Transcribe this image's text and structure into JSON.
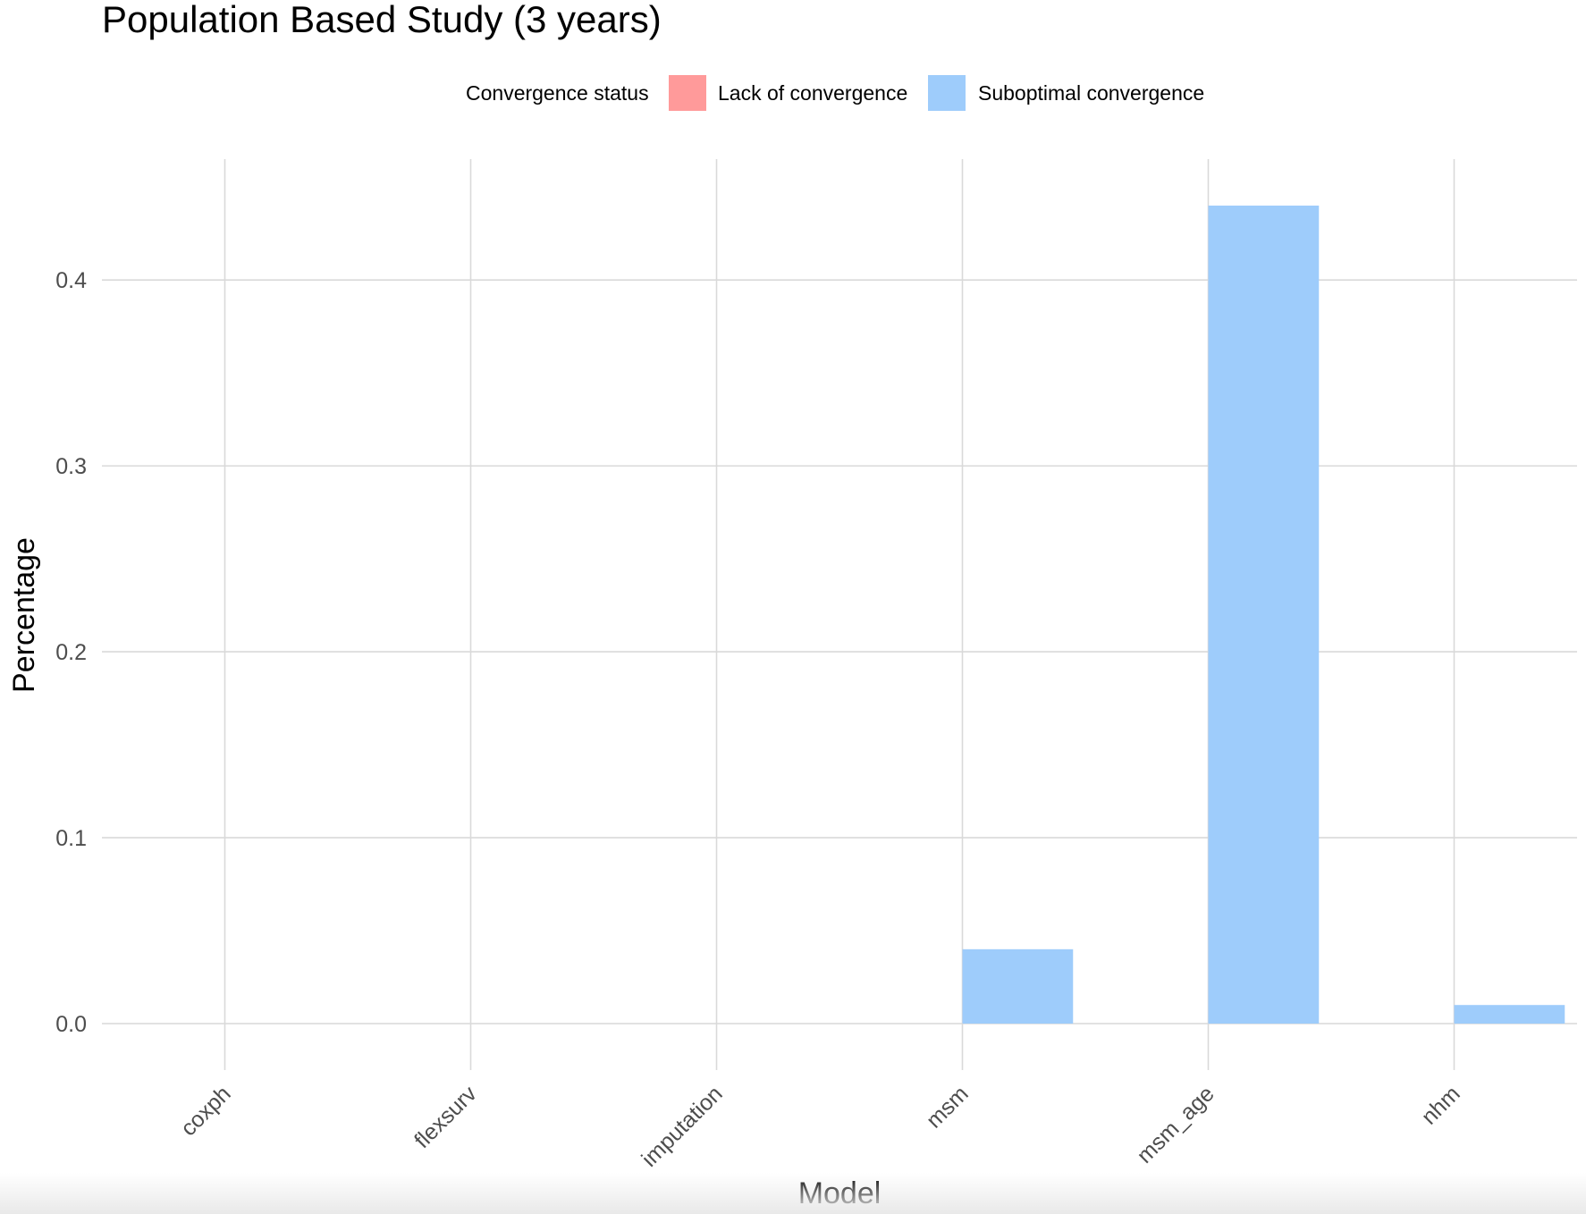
{
  "chart_data": {
    "type": "bar",
    "title": "Population Based Study (3 years)",
    "xlabel": "Model",
    "ylabel": "Percentage",
    "categories": [
      "coxph",
      "flexsurv",
      "imputation",
      "msm",
      "msm_age",
      "nhm"
    ],
    "legend": {
      "title": "Convergence status",
      "position": "top"
    },
    "series": [
      {
        "name": "Lack of convergence",
        "color": "#FF9A9A",
        "values": [
          0,
          0,
          0,
          0,
          0,
          0
        ]
      },
      {
        "name": "Suboptimal convergence",
        "color": "#9ECCFB",
        "values": [
          0,
          0,
          0,
          0.04,
          0.44,
          0.01
        ]
      }
    ],
    "ylim": [
      -0.025,
      0.465
    ],
    "yticks": [
      0.0,
      0.1,
      0.2,
      0.3,
      0.4
    ],
    "ytick_labels": [
      "0.0",
      "0.1",
      "0.2",
      "0.3",
      "0.4"
    ],
    "grid": true
  }
}
